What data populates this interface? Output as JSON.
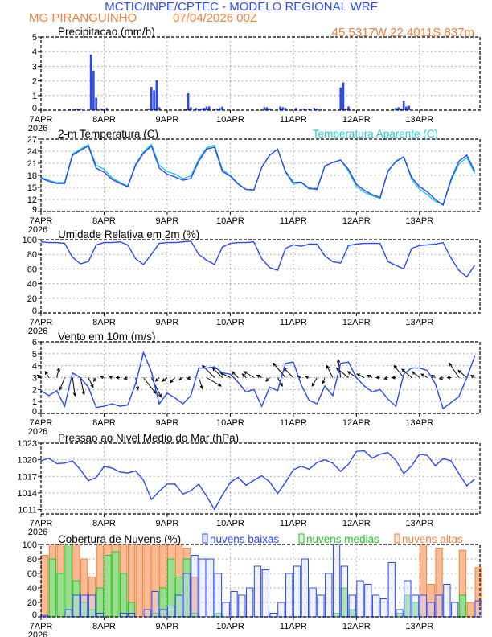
{
  "header": {
    "title": "MCTIC/INPE/CPTEC - MODELO REGIONAL WRF",
    "location": "MG PIRANGUINHO",
    "run": "07/04/2026 00Z",
    "coords": "45.5317W 22.4011S 837m"
  },
  "colors": {
    "title": "#2a4bff",
    "orange": "#f0823c",
    "blue": "#2846ff",
    "cyan": "#22cccc",
    "green": "#22c622",
    "grid": "#999999"
  },
  "chart_data": {
    "x_tick_labels": [
      "7APR",
      "8APR",
      "9APR",
      "10APR",
      "11APR",
      "12APR",
      "13APR"
    ],
    "x_year_label": "2026",
    "x_times": [
      "07APR 00Z",
      "07APR 03Z",
      "07APR 06Z",
      "07APR 09Z",
      "07APR 12Z",
      "07APR 15Z",
      "07APR 18Z",
      "07APR 21Z",
      "08APR 00Z",
      "08APR 03Z",
      "08APR 06Z",
      "08APR 09Z",
      "08APR 12Z",
      "08APR 15Z",
      "08APR 18Z",
      "08APR 21Z",
      "09APR 00Z",
      "09APR 03Z",
      "09APR 06Z",
      "09APR 09Z",
      "09APR 12Z",
      "09APR 15Z",
      "09APR 18Z",
      "09APR 21Z",
      "10APR 00Z",
      "10APR 03Z",
      "10APR 06Z",
      "10APR 09Z",
      "10APR 12Z",
      "10APR 15Z",
      "10APR 18Z",
      "10APR 21Z",
      "11APR 00Z",
      "11APR 03Z",
      "11APR 06Z",
      "11APR 09Z",
      "11APR 12Z",
      "11APR 15Z",
      "11APR 18Z",
      "11APR 21Z",
      "12APR 00Z",
      "12APR 03Z",
      "12APR 06Z",
      "12APR 09Z",
      "12APR 12Z",
      "12APR 15Z",
      "12APR 18Z",
      "12APR 21Z",
      "13APR 00Z",
      "13APR 03Z",
      "13APR 06Z",
      "13APR 09Z",
      "13APR 12Z",
      "13APR 15Z",
      "13APR 18Z",
      "13APR 21Z"
    ],
    "panels": [
      {
        "id": "precip",
        "type": "bar",
        "title": "Precipitacao (mm/h)",
        "ylim": [
          0,
          5
        ],
        "yticks": [
          "0",
          "1",
          "2",
          "3",
          "4",
          "5"
        ],
        "grid": true,
        "series": [
          {
            "color": "blue",
            "points": [
              [
                "07APR 11Z",
                0.05
              ],
              [
                "07APR 13Z",
                0.05
              ],
              [
                "07APR 14Z",
                0.1
              ],
              [
                "07APR 15Z",
                0.1
              ],
              [
                "07APR 19Z",
                3.8
              ],
              [
                "07APR 20Z",
                2.7
              ],
              [
                "07APR 21Z",
                0.85
              ],
              [
                "07APR 23Z",
                0.1
              ],
              [
                "08APR 01Z",
                0.15
              ],
              [
                "08APR 16Z",
                0.05
              ],
              [
                "08APR 17Z",
                0.1
              ],
              [
                "08APR 18Z",
                1.6
              ],
              [
                "08APR 19Z",
                1.35
              ],
              [
                "08APR 20Z",
                2.05
              ],
              [
                "08APR 21Z",
                0.2
              ],
              [
                "09APR 07Z",
                0.05
              ],
              [
                "09APR 08Z",
                1.15
              ],
              [
                "09APR 09Z",
                0.2
              ],
              [
                "09APR 11Z",
                0.15
              ],
              [
                "09APR 12Z",
                0.1
              ],
              [
                "09APR 13Z",
                0.1
              ],
              [
                "09APR 14Z",
                0.15
              ],
              [
                "09APR 15Z",
                0.25
              ],
              [
                "09APR 16Z",
                0.25
              ],
              [
                "09APR 18Z",
                0.05
              ],
              [
                "09APR 19Z",
                0.1
              ],
              [
                "09APR 20Z",
                0.15
              ],
              [
                "09APR 21Z",
                0.25
              ],
              [
                "10APR 13Z",
                0.2
              ],
              [
                "10APR 14Z",
                0.2
              ],
              [
                "10APR 15Z",
                0.1
              ],
              [
                "10APR 19Z",
                0.25
              ],
              [
                "10APR 20Z",
                0.2
              ],
              [
                "10APR 21Z",
                0.15
              ],
              [
                "11APR 01Z",
                0.15
              ],
              [
                "11APR 04Z",
                0.1
              ],
              [
                "11APR 06Z",
                0.1
              ],
              [
                "11APR 08Z",
                0.15
              ],
              [
                "11APR 09Z",
                0.1
              ],
              [
                "11APR 18Z",
                1.55
              ],
              [
                "11APR 19Z",
                1.9
              ],
              [
                "11APR 20Z",
                0.1
              ],
              [
                "11APR 21Z",
                0.25
              ],
              [
                "12APR 14Z",
                0.05
              ],
              [
                "12APR 15Z",
                0.15
              ],
              [
                "12APR 16Z",
                0.2
              ],
              [
                "12APR 17Z",
                0.1
              ],
              [
                "12APR 18Z",
                0.65
              ],
              [
                "12APR 19Z",
                0.25
              ],
              [
                "12APR 20Z",
                0.3
              ],
              [
                "13APR 19Z",
                0.1
              ]
            ]
          }
        ]
      },
      {
        "id": "temp",
        "type": "line",
        "title": "2-m Temperatura (C)",
        "legend_right": "Temperatura Aparente (C)",
        "ylim": [
          9,
          27
        ],
        "yticks": [
          "9",
          "12",
          "15",
          "18",
          "21",
          "24",
          "27"
        ],
        "grid": true,
        "series": [
          {
            "color": "cyan",
            "values": [
              17.5,
              16.8,
              16.2,
              16.2,
              23.3,
              24.5,
              25.6,
              20.5,
              19.5,
              17.4,
              16.3,
              15.3,
              20.8,
              23.8,
              25.7,
              20.5,
              19.0,
              18.3,
              17.2,
              17.8,
              22.0,
              24.8,
              25.5,
              19.5,
              18.0,
              16.0,
              14.5,
              14.3,
              20.0,
              23.0,
              24.5,
              18.8,
              15.8,
              16.2,
              14.6,
              14.8,
              20.3,
              21.2,
              21.8,
              19.0,
              15.3,
              13.8,
              12.9,
              12.2,
              19.2,
              21.3,
              22.6,
              17.0,
              14.6,
              13.2,
              11.5,
              10.8,
              16.6,
              20.8,
              22.4,
              18.5
            ]
          },
          {
            "color": "blue",
            "values": [
              17.3,
              16.5,
              16.0,
              16.0,
              23.0,
              24.2,
              25.3,
              19.8,
              18.8,
              17.0,
              16.0,
              15.2,
              20.5,
              23.5,
              25.3,
              19.8,
              18.3,
              17.6,
              16.8,
              17.2,
              21.5,
              24.5,
              25.0,
              19.0,
              17.8,
              15.8,
              14.5,
              14.4,
              20.0,
              23.0,
              24.5,
              19.0,
              16.2,
              16.3,
              14.8,
              14.5,
              20.3,
              21.2,
              21.8,
              19.5,
              15.8,
              14.3,
              13.2,
              12.5,
              19.0,
              21.5,
              22.6,
              17.5,
              15.2,
              13.9,
              12.0,
              10.6,
              17.0,
              21.5,
              23.0,
              19.0
            ]
          }
        ]
      },
      {
        "id": "rh",
        "type": "line",
        "title": "Umidade Relativa em 2m (%)",
        "ylim": [
          0,
          100
        ],
        "yticks": [
          "0",
          "20",
          "40",
          "60",
          "80",
          "100"
        ],
        "grid": true,
        "series": [
          {
            "color": "blue",
            "values": [
              97,
              96,
              96,
              95,
              76,
              67,
              70,
              93,
              96,
              96,
              97,
              93,
              74,
              66,
              80,
              95,
              96,
              96,
              97,
              98,
              80,
              72,
              66,
              90,
              95,
              96,
              96,
              97,
              74,
              62,
              58,
              88,
              93,
              91,
              94,
              94,
              78,
              70,
              68,
              92,
              94,
              95,
              95,
              95,
              70,
              65,
              60,
              88,
              92,
              93,
              94,
              96,
              75,
              58,
              49,
              65
            ]
          }
        ]
      },
      {
        "id": "wind",
        "type": "line",
        "title": "Vento em 10m (m/s)",
        "ylim": [
          0,
          6
        ],
        "yticks": [
          "0",
          "1",
          "2",
          "3",
          "4",
          "5",
          "6"
        ],
        "grid": true,
        "series": [
          {
            "color": "blue",
            "values": [
              1.9,
              1.5,
              1.9,
              0.6,
              3.4,
              3.0,
              2.2,
              0.5,
              0.6,
              0.8,
              0.6,
              0.7,
              2.5,
              5.1,
              3.5,
              0.8,
              1.7,
              1.3,
              0.8,
              1.5,
              3.8,
              3.8,
              3.9,
              3.4,
              3.3,
              2.6,
              1.8,
              2.0,
              0.6,
              2.2,
              1.9,
              4.2,
              4.3,
              2.4,
              1.1,
              0.8,
              2.3,
              1.5,
              4.2,
              4.3,
              3.0,
              2.3,
              1.8,
              2.0,
              1.2,
              0.6,
              3.3,
              3.8,
              3.8,
              3.6,
              2.5,
              0.4,
              0.9,
              1.4,
              3.0,
              4.8
            ]
          }
        ],
        "vectors": {
          "u": [
            -0.3,
            -0.3,
            0.2,
            -0.4,
            0.2,
            0.3,
            0.4,
            -0.2,
            -0.3,
            -0.2,
            -0.3,
            -0.3,
            0.2,
            1.0,
            0.8,
            -0.3,
            -0.4,
            -0.4,
            -0.3,
            -0.3,
            0.3,
            1.2,
            -1.0,
            -0.8,
            -0.8,
            -0.5,
            -0.3,
            -0.8,
            -0.4,
            -0.3,
            0.4,
            -1.0,
            -0.8,
            -0.3,
            -0.3,
            -0.4,
            -0.2,
            -0.5,
            -0.2,
            -1.0,
            -0.7,
            -0.6,
            -0.4,
            -0.3,
            -0.3,
            -0.3,
            -0.8,
            -0.8,
            -0.6,
            -0.5,
            -0.3,
            -0.3,
            -0.3,
            -0.8,
            -0.7,
            -0.3
          ],
          "v": [
            0.2,
            0.5,
            0.8,
            -1.0,
            -1.5,
            -1.4,
            -0.8,
            -0.3,
            0.1,
            0.1,
            0,
            -0.1,
            -1.0,
            -1.3,
            -1.6,
            -0.3,
            -0.3,
            -0.4,
            -0.2,
            -0.1,
            -0.9,
            -0.7,
            1.0,
            0.8,
            0.4,
            0.5,
            0.3,
            0.5,
            0.2,
            -0.3,
            -0.7,
            1.2,
            0.8,
            0.1,
            0.1,
            -0.7,
            -0.5,
            1.0,
            1.5,
            0.8,
            0.5,
            0.3,
            0.2,
            0,
            -0.1,
            0,
            1.0,
            0.7,
            0.5,
            0.3,
            0.2,
            -0.1,
            0,
            1.2,
            0.6,
            0.2
          ]
        }
      },
      {
        "id": "pressure",
        "type": "line",
        "title": "Pressao ao Nivel Medio do Mar (hPa)",
        "ylim": [
          1010.2,
          1023
        ],
        "yticks": [
          "1011",
          "1014",
          "1017",
          "1020",
          "1023"
        ],
        "grid": true,
        "series": [
          {
            "color": "blue",
            "values": [
              1019.8,
              1020.3,
              1019.3,
              1019.4,
              1019.8,
              1018.2,
              1016.2,
              1016.8,
              1018.8,
              1018.5,
              1017.8,
              1017.6,
              1018.0,
              1016.3,
              1012.8,
              1014.3,
              1015.6,
              1015.6,
              1013.8,
              1014.4,
              1015.6,
              1013.4,
              1011.0,
              1013.6,
              1015.9,
              1016.8,
              1015.4,
              1016.3,
              1017.1,
              1016.0,
              1013.9,
              1015.9,
              1018.2,
              1018.8,
              1018.3,
              1019.5,
              1020.0,
              1019.4,
              1017.9,
              1019.2,
              1021.5,
              1021.6,
              1020.3,
              1021.0,
              1021.3,
              1019.9,
              1017.5,
              1018.9,
              1021.0,
              1020.8,
              1018.9,
              1020.2,
              1019.8,
              1017.5,
              1015.3,
              1016.5
            ]
          }
        ]
      },
      {
        "id": "clouds",
        "type": "bar",
        "title": "Cobertura de Nuvens (%)",
        "ylim": [
          0,
          100
        ],
        "yticks": [
          "0",
          "20",
          "40",
          "60",
          "80",
          "100"
        ],
        "grid": true,
        "series": [
          {
            "name": "nuvens altas",
            "color": "orange",
            "values": [
              85,
              100,
              100,
              100,
              100,
              80,
              55,
              100,
              100,
              100,
              100,
              100,
              100,
              100,
              100,
              100,
              100,
              100,
              95,
              55,
              0,
              0,
              0,
              0,
              0,
              0,
              0,
              0,
              0,
              0,
              0,
              0,
              0,
              0,
              0,
              0,
              0,
              0,
              0,
              0,
              0,
              0,
              0,
              0,
              0,
              0,
              0,
              0,
              100,
              45,
              95,
              0,
              0,
              92,
              20,
              68
            ]
          },
          {
            "name": "nuvens medias",
            "color": "green",
            "values": [
              0,
              80,
              60,
              100,
              50,
              20,
              10,
              40,
              85,
              90,
              60,
              20,
              0,
              0,
              5,
              40,
              80,
              55,
              80,
              5,
              0,
              0,
              5,
              0,
              0,
              0,
              0,
              0,
              0,
              0,
              0,
              0,
              0,
              0,
              0,
              0,
              0,
              5,
              40,
              10,
              0,
              0,
              0,
              0,
              0,
              5,
              30,
              20,
              0,
              0,
              0,
              0,
              0,
              30,
              0,
              0
            ]
          },
          {
            "name": "nuvens baixas",
            "color": "blue",
            "values": [
              2,
              0,
              0,
              10,
              30,
              30,
              30,
              5,
              0,
              0,
              5,
              5,
              0,
              10,
              35,
              10,
              15,
              30,
              60,
              85,
              80,
              80,
              60,
              20,
              35,
              30,
              40,
              70,
              65,
              5,
              20,
              60,
              70,
              80,
              40,
              30,
              60,
              100,
              70,
              30,
              50,
              45,
              30,
              25,
              75,
              10,
              50,
              30,
              30,
              20,
              30,
              45,
              20,
              0,
              0,
              22
            ]
          }
        ]
      }
    ]
  }
}
